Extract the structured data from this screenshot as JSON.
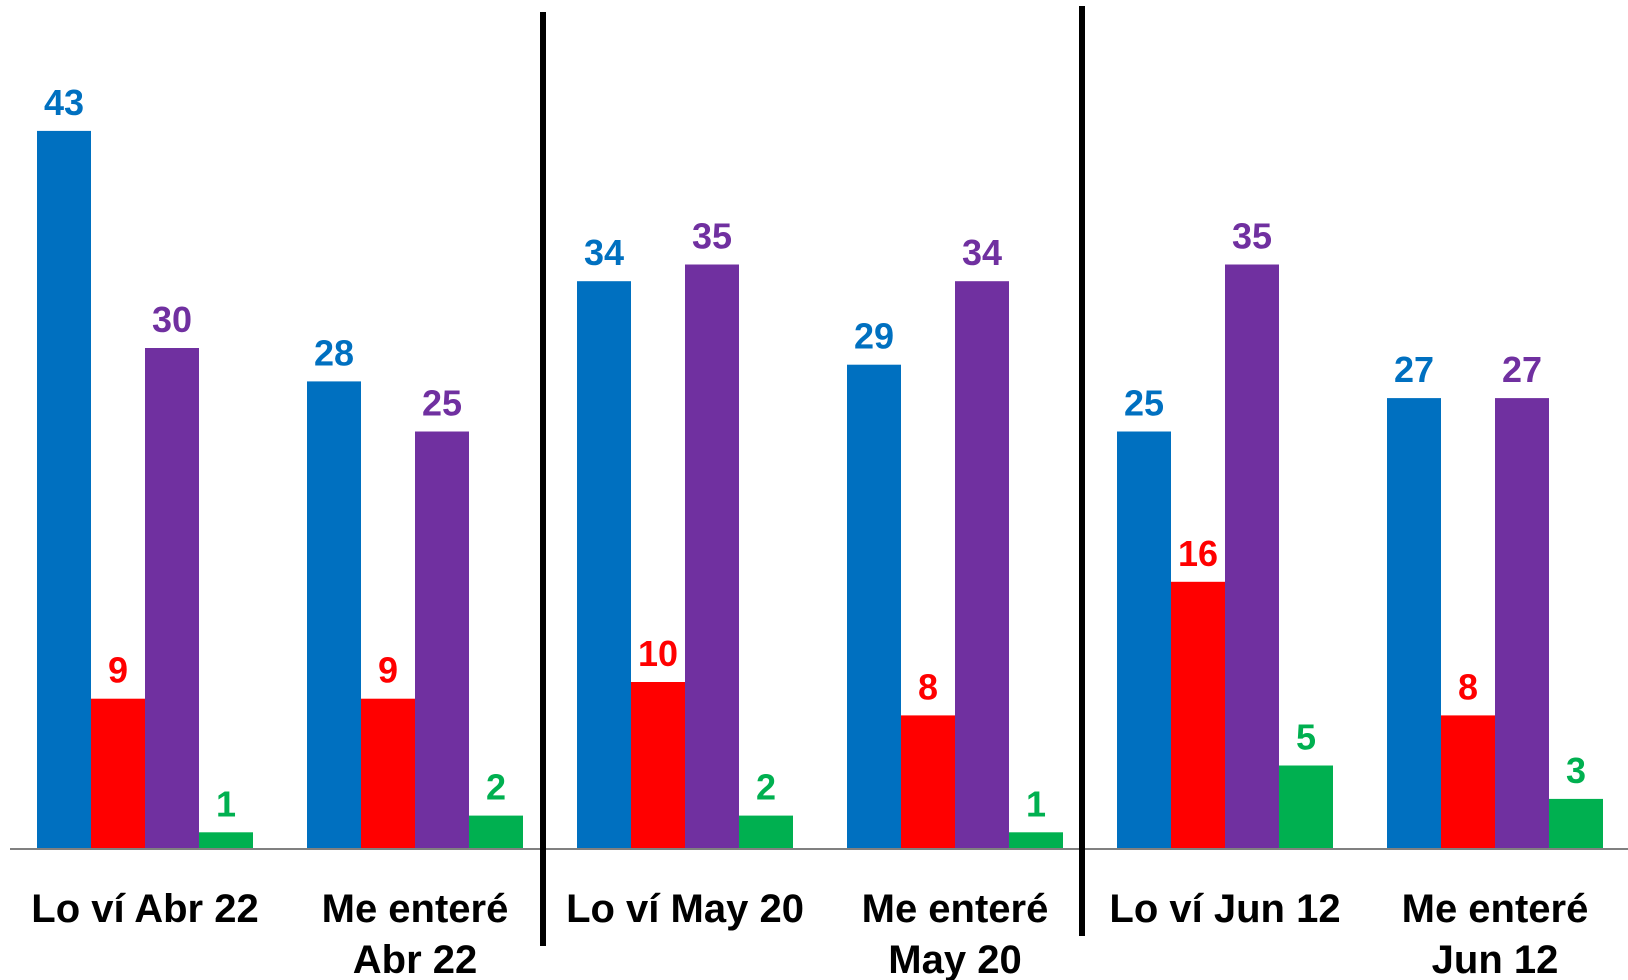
{
  "chart_data": {
    "type": "bar",
    "categories": [
      [
        "Lo ví Abr 22"
      ],
      [
        "Me enteré",
        "Abr 22"
      ],
      [
        "Lo ví May 20"
      ],
      [
        "Me enteré",
        "May 20"
      ],
      [
        "Lo ví Jun 12"
      ],
      [
        "Me enteré",
        "Jun 12"
      ]
    ],
    "series": [
      {
        "color": "#0070c0",
        "values": [
          43,
          28,
          34,
          29,
          25,
          27
        ]
      },
      {
        "color": "#ff0000",
        "values": [
          9,
          9,
          10,
          8,
          16,
          8
        ]
      },
      {
        "color": "#7030a0",
        "values": [
          30,
          25,
          35,
          34,
          35,
          27
        ]
      },
      {
        "color": "#00b050",
        "values": [
          1,
          2,
          2,
          1,
          5,
          3
        ]
      }
    ],
    "title": "",
    "xlabel": "",
    "ylabel": "",
    "ylim": [
      0,
      48
    ],
    "grid": false,
    "legend": "none",
    "data_labels": true,
    "group_separators_after_category": [
      1,
      3
    ]
  }
}
